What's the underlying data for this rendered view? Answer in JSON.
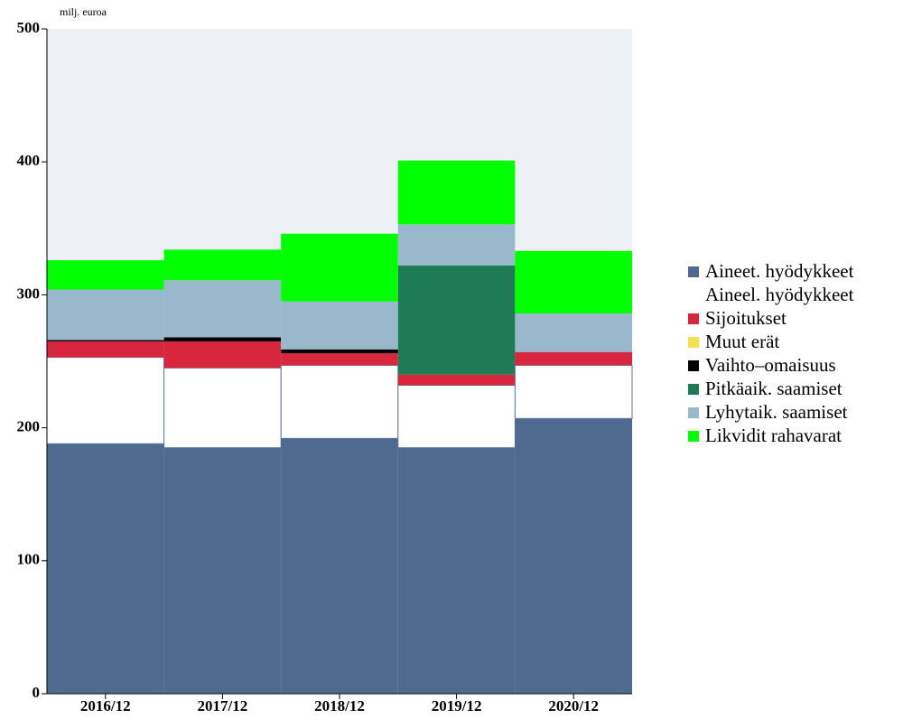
{
  "chart_data": {
    "type": "stacked_bar",
    "y_label": "milj. euroa",
    "categories": [
      "2016/12",
      "2017/12",
      "2018/12",
      "2019/12",
      "2020/12"
    ],
    "series": [
      {
        "name": "Aineet. hyödykkeet",
        "color": "#4f6a8f",
        "values": [
          188,
          185,
          192,
          185,
          207
        ]
      },
      {
        "name": "Aineel. hyödykkeet",
        "color": "#ffffff",
        "values": [
          65,
          60,
          55,
          47,
          40
        ]
      },
      {
        "name": "Sijoitukset",
        "color": "#d7263d",
        "values": [
          12,
          20,
          9,
          8,
          10
        ]
      },
      {
        "name": "Muut erät",
        "color": "#f5e050",
        "values": [
          0,
          0,
          0,
          0,
          0
        ]
      },
      {
        "name": "Vaihto–omaisuus",
        "color": "#000000",
        "values": [
          1,
          3,
          3,
          0,
          0
        ]
      },
      {
        "name": "Pitkäaik. saamiset",
        "color": "#1f7a56",
        "values": [
          0,
          0,
          0,
          82,
          0
        ]
      },
      {
        "name": "Lyhytaik. saamiset",
        "color": "#9ab8cc",
        "values": [
          38,
          43,
          36,
          31,
          29
        ]
      },
      {
        "name": "Likvidit rahavarat",
        "color": "#00ff00",
        "values": [
          22,
          23,
          51,
          48,
          47
        ]
      }
    ],
    "ylim": [
      0,
      500
    ],
    "yticks": [
      0,
      100,
      200,
      300,
      400,
      500
    ]
  }
}
